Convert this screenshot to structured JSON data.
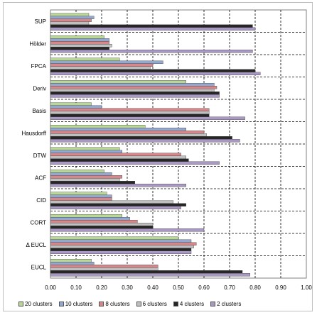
{
  "chart_data": {
    "type": "bar",
    "orientation": "horizontal",
    "categories": [
      "SUP",
      "Hölder",
      "FPCA",
      "Deriv",
      "Basis",
      "Hausdorff",
      "DTW",
      "ACF",
      "CID",
      "CORT",
      "Δ EUCL",
      "EUCL"
    ],
    "xlim": [
      0,
      1
    ],
    "xticks": [
      "0.00",
      "0.10",
      "0.20",
      "0.30",
      "0.40",
      "0.50",
      "0.60",
      "0.70",
      "0.80",
      "0.90",
      "1.00"
    ],
    "grid": "dashed vertical",
    "legend_position": "bottom",
    "series": [
      {
        "name": "20 clusters",
        "color": "#b9d896",
        "values": [
          0.15,
          0.21,
          0.27,
          0.53,
          0.16,
          0.37,
          0.27,
          0.21,
          0.22,
          0.28,
          0.5,
          0.16
        ]
      },
      {
        "name": "10 clusters",
        "color": "#93a8cf",
        "values": [
          0.17,
          0.23,
          0.44,
          0.64,
          0.2,
          0.53,
          0.28,
          0.24,
          0.24,
          0.31,
          0.55,
          0.17
        ]
      },
      {
        "name": "8 clusters",
        "color": "#d7878a",
        "values": [
          0.16,
          0.23,
          0.4,
          0.65,
          0.62,
          0.6,
          0.51,
          0.28,
          0.24,
          0.34,
          0.57,
          0.42
        ]
      },
      {
        "name": "6 clusters",
        "color": "#bfbfbf",
        "values": [
          0.15,
          0.24,
          0.39,
          0.64,
          0.62,
          0.61,
          0.53,
          0.27,
          0.48,
          0.4,
          0.56,
          0.42
        ]
      },
      {
        "name": "4 clusters",
        "color": "#262626",
        "values": [
          0.79,
          0.23,
          0.8,
          0.66,
          0.62,
          0.71,
          0.54,
          0.33,
          0.53,
          0.4,
          0.55,
          0.75
        ]
      },
      {
        "name": "2 clusters",
        "color": "#a997c4",
        "values": [
          0.8,
          0.79,
          0.82,
          0.66,
          0.76,
          0.74,
          0.66,
          0.53,
          0.51,
          0.6,
          0.55,
          0.78
        ]
      }
    ]
  }
}
